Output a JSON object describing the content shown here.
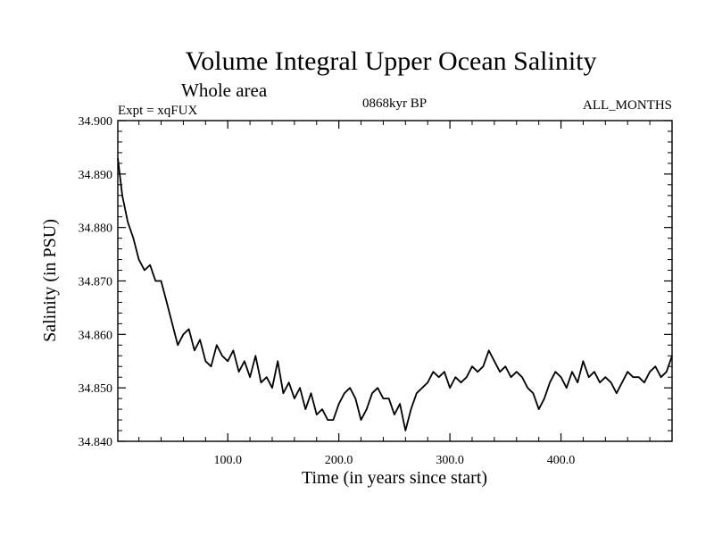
{
  "chart_data": {
    "type": "line",
    "title": "Volume Integral Upper Ocean Salinity",
    "subtitle": "Whole area",
    "expt_label": "Expt = xqFUX",
    "period_label": "0868kyr BP",
    "months_label": "ALL_MONTHS",
    "xlabel": "Time (in years since start)",
    "ylabel": "Salinity (in PSU)",
    "xlim": [
      1,
      500
    ],
    "ylim": [
      34.84,
      34.9
    ],
    "x_ticks": [
      100,
      200,
      300,
      400
    ],
    "x_tick_labels": [
      "100.0",
      "200.0",
      "300.0",
      "400.0"
    ],
    "y_ticks": [
      34.84,
      34.85,
      34.86,
      34.87,
      34.88,
      34.89,
      34.9
    ],
    "y_tick_labels": [
      "34.840",
      "34.850",
      "34.860",
      "34.870",
      "34.880",
      "34.890",
      "34.900"
    ],
    "grid": false,
    "series": [
      {
        "name": "Salinity",
        "x": [
          1,
          5,
          10,
          15,
          20,
          25,
          30,
          35,
          40,
          45,
          50,
          55,
          60,
          65,
          70,
          75,
          80,
          85,
          90,
          95,
          100,
          105,
          110,
          115,
          120,
          125,
          130,
          135,
          140,
          145,
          150,
          155,
          160,
          165,
          170,
          175,
          180,
          185,
          190,
          195,
          200,
          205,
          210,
          215,
          220,
          225,
          230,
          235,
          240,
          245,
          250,
          255,
          260,
          265,
          270,
          275,
          280,
          285,
          290,
          295,
          300,
          305,
          310,
          315,
          320,
          325,
          330,
          335,
          340,
          345,
          350,
          355,
          360,
          365,
          370,
          375,
          380,
          385,
          390,
          395,
          400,
          405,
          410,
          415,
          420,
          425,
          430,
          435,
          440,
          445,
          450,
          455,
          460,
          465,
          470,
          475,
          480,
          485,
          490,
          495,
          500
        ],
        "values": [
          34.893,
          34.886,
          34.881,
          34.878,
          34.874,
          34.872,
          34.873,
          34.87,
          34.87,
          34.866,
          34.862,
          34.858,
          34.86,
          34.861,
          34.857,
          34.859,
          34.855,
          34.854,
          34.858,
          34.856,
          34.855,
          34.857,
          34.853,
          34.855,
          34.852,
          34.856,
          34.851,
          34.852,
          34.85,
          34.855,
          34.849,
          34.851,
          34.848,
          34.85,
          34.846,
          34.849,
          34.845,
          34.846,
          34.844,
          34.844,
          34.847,
          34.849,
          34.85,
          34.848,
          34.844,
          34.846,
          34.849,
          34.85,
          34.848,
          34.848,
          34.845,
          34.847,
          34.842,
          34.846,
          34.849,
          34.85,
          34.851,
          34.853,
          34.852,
          34.853,
          34.85,
          34.852,
          34.851,
          34.852,
          34.854,
          34.853,
          34.854,
          34.857,
          34.855,
          34.853,
          34.854,
          34.852,
          34.853,
          34.852,
          34.85,
          34.849,
          34.846,
          34.848,
          34.851,
          34.853,
          34.852,
          34.85,
          34.853,
          34.851,
          34.855,
          34.852,
          34.853,
          34.851,
          34.852,
          34.851,
          34.849,
          34.851,
          34.853,
          34.852,
          34.852,
          34.851,
          34.853,
          34.854,
          34.852,
          34.853,
          34.856
        ]
      }
    ]
  }
}
